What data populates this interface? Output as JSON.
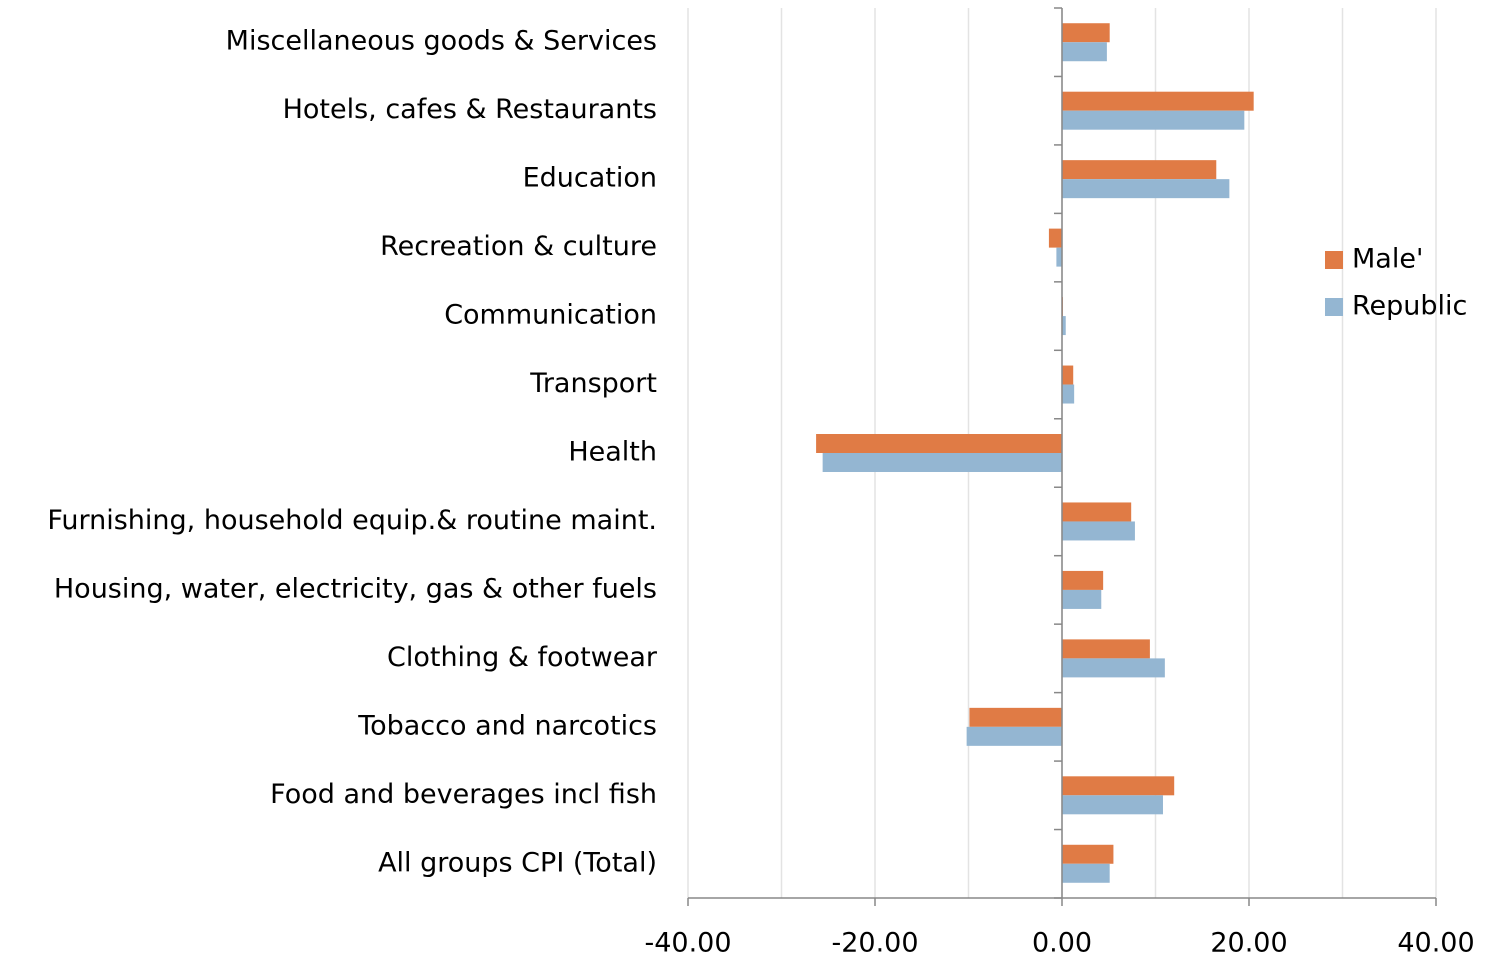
{
  "chart_data": {
    "type": "hbar",
    "categories": [
      "Miscellaneous goods & Services",
      "Hotels, cafes & Restaurants",
      "Education",
      "Recreation & culture",
      "Communication",
      "Transport",
      "Health",
      "Furnishing, household equip.& routine maint.",
      "Housing, water, electricity, gas & other fuels",
      "Clothing & footwear",
      "Tobacco and narcotics",
      "Food and beverages incl fish",
      "All groups CPI (Total)"
    ],
    "series": [
      {
        "name": "Male'",
        "color": "#e07b45",
        "values": [
          5.1,
          20.5,
          16.5,
          -1.4,
          0.1,
          1.2,
          -26.3,
          7.4,
          4.4,
          9.4,
          -9.9,
          12.0,
          5.5
        ]
      },
      {
        "name": "Republic",
        "color": "#94b6d2",
        "values": [
          4.8,
          19.5,
          17.9,
          -0.6,
          0.4,
          1.3,
          -25.6,
          7.8,
          4.2,
          11.0,
          -10.2,
          10.8,
          5.1
        ]
      }
    ],
    "xlim": [
      -40,
      40
    ],
    "xticks": [
      {
        "value": -40,
        "label": "-40.00"
      },
      {
        "value": -20,
        "label": "-20.00"
      },
      {
        "value": 0,
        "label": "0.00"
      },
      {
        "value": 20,
        "label": "20.00"
      },
      {
        "value": 40,
        "label": "40.00"
      }
    ],
    "grid_xticks": [
      -30,
      -10,
      10,
      30
    ],
    "grid": true,
    "legend": "right"
  }
}
